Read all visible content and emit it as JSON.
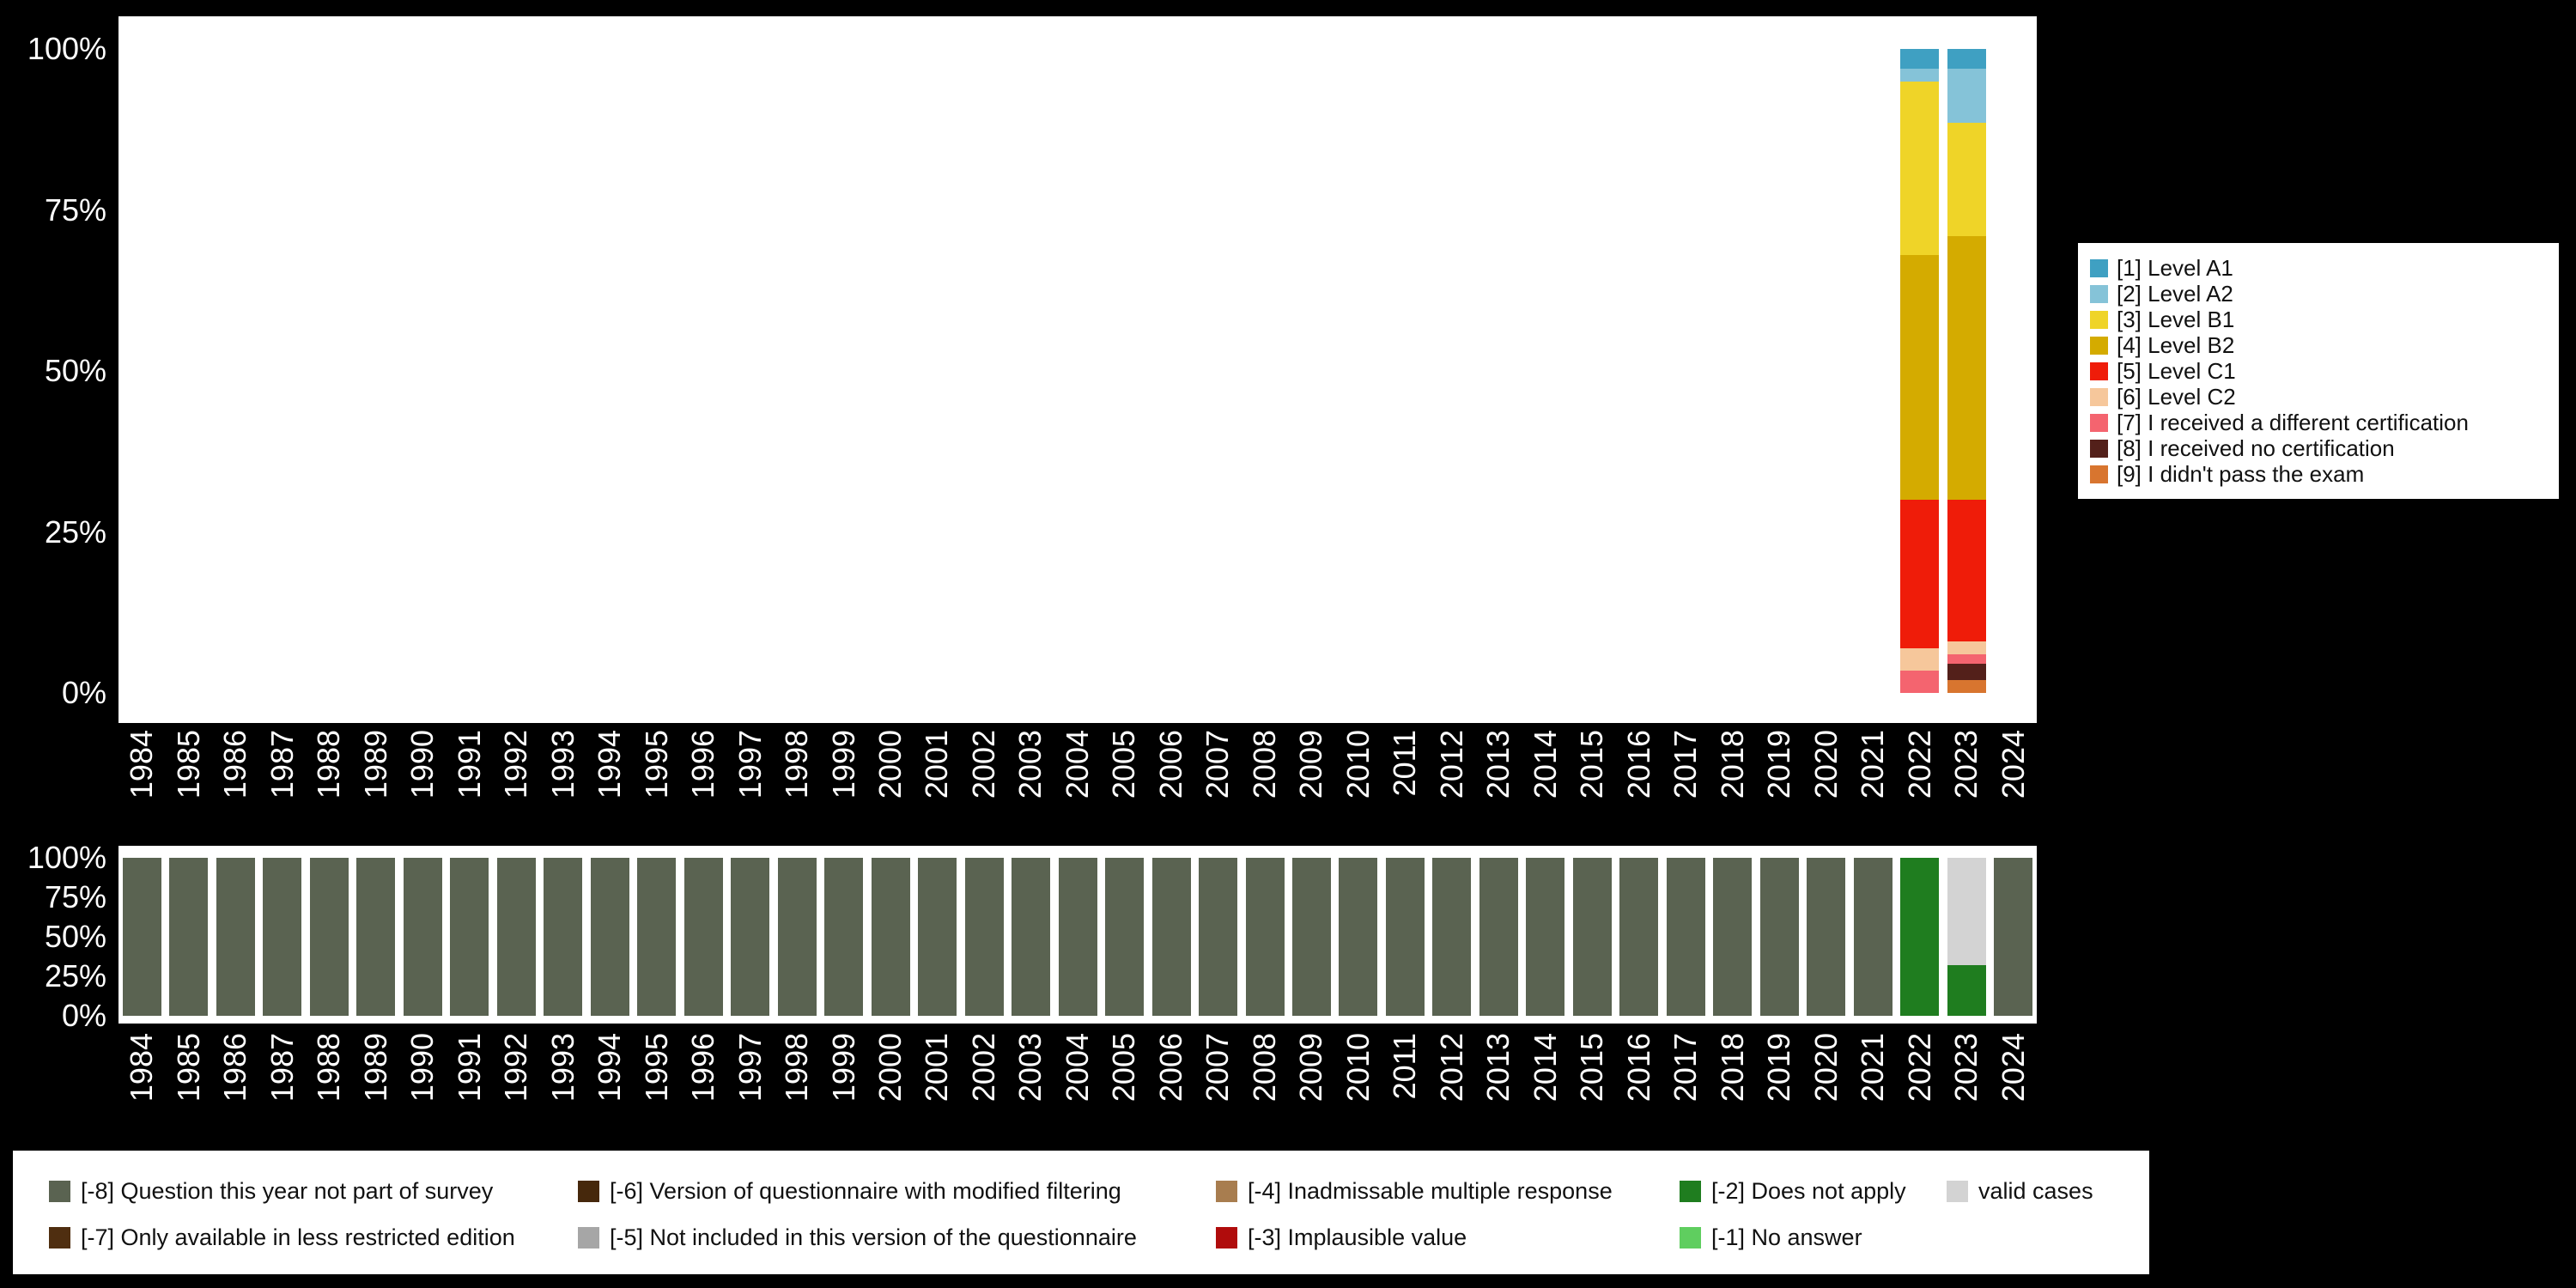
{
  "canvas": {
    "background": "#000000",
    "plot_background": "#ffffff",
    "axis_text_color": "#ffffff",
    "legend_background": "#ffffff",
    "legend_text_color": "#111111"
  },
  "chart_data": [
    {
      "name": "answer-distribution-by-year",
      "type": "bar",
      "stacked": true,
      "stack_from": "top",
      "grid": false,
      "legend_position": "right",
      "ylim": [
        0,
        100
      ],
      "y_ticks": [
        "100%",
        "75%",
        "50%",
        "25%",
        "0%"
      ],
      "categories": [
        "1984",
        "1985",
        "1986",
        "1987",
        "1988",
        "1989",
        "1990",
        "1991",
        "1992",
        "1993",
        "1994",
        "1995",
        "1996",
        "1997",
        "1998",
        "1999",
        "2000",
        "2001",
        "2002",
        "2003",
        "2004",
        "2005",
        "2006",
        "2007",
        "2008",
        "2009",
        "2010",
        "2011",
        "2012",
        "2013",
        "2014",
        "2015",
        "2016",
        "2017",
        "2018",
        "2019",
        "2020",
        "2021",
        "2022",
        "2023",
        "2024"
      ],
      "series": [
        {
          "label": "[1] Level A1",
          "color": "#3FA0C2",
          "values": {
            "2022": 3,
            "2023": 3
          }
        },
        {
          "label": "[2] Level A2",
          "color": "#85C3D8",
          "values": {
            "2022": 2,
            "2023": 8.5
          }
        },
        {
          "label": "[3] Level B1",
          "color": "#EFD428",
          "values": {
            "2022": 27,
            "2023": 17.5
          }
        },
        {
          "label": "[4] Level B2",
          "color": "#D4AB00",
          "values": {
            "2022": 38,
            "2023": 41
          }
        },
        {
          "label": "[5] Level C1",
          "color": "#EF1C09",
          "values": {
            "2022": 23,
            "2023": 22
          }
        },
        {
          "label": "[6] Level C2",
          "color": "#F6C79B",
          "values": {
            "2022": 3.5,
            "2023": 2
          }
        },
        {
          "label": "[7] I received a different certification",
          "color": "#F4646F",
          "values": {
            "2022": 3.5,
            "2023": 1.5
          }
        },
        {
          "label": "[8] I received no certification",
          "color": "#53201A",
          "values": {
            "2023": 2.5
          }
        },
        {
          "label": "[9] I didn't pass the exam",
          "color": "#D8752F",
          "values": {
            "2023": 2
          }
        }
      ]
    },
    {
      "name": "missing-values-by-year",
      "type": "bar",
      "stacked": true,
      "stack_from": "bottom",
      "grid": false,
      "legend_position": "bottom",
      "ylim": [
        0,
        100
      ],
      "y_ticks": [
        "100%",
        "75%",
        "50%",
        "25%",
        "0%"
      ],
      "categories": [
        "1984",
        "1985",
        "1986",
        "1987",
        "1988",
        "1989",
        "1990",
        "1991",
        "1992",
        "1993",
        "1994",
        "1995",
        "1996",
        "1997",
        "1998",
        "1999",
        "2000",
        "2001",
        "2002",
        "2003",
        "2004",
        "2005",
        "2006",
        "2007",
        "2008",
        "2009",
        "2010",
        "2011",
        "2012",
        "2013",
        "2014",
        "2015",
        "2016",
        "2017",
        "2018",
        "2019",
        "2020",
        "2021",
        "2022",
        "2023",
        "2024"
      ],
      "series": [
        {
          "label": "[-8] Question this year not part of survey",
          "color": "#5A6351",
          "values": {
            "1984": 100,
            "1985": 100,
            "1986": 100,
            "1987": 100,
            "1988": 100,
            "1989": 100,
            "1990": 100,
            "1991": 100,
            "1992": 100,
            "1993": 100,
            "1994": 100,
            "1995": 100,
            "1996": 100,
            "1997": 100,
            "1998": 100,
            "1999": 100,
            "2000": 100,
            "2001": 100,
            "2002": 100,
            "2003": 100,
            "2004": 100,
            "2005": 100,
            "2006": 100,
            "2007": 100,
            "2008": 100,
            "2009": 100,
            "2010": 100,
            "2011": 100,
            "2012": 100,
            "2013": 100,
            "2014": 100,
            "2015": 100,
            "2016": 100,
            "2017": 100,
            "2018": 100,
            "2019": 100,
            "2020": 100,
            "2021": 100,
            "2024": 100
          }
        },
        {
          "label": "[-7] Only available in less restricted edition",
          "color": "#4F2E10",
          "values": {}
        },
        {
          "label": "[-6] Version of questionnaire with modified filtering",
          "color": "#46280C",
          "values": {}
        },
        {
          "label": "[-5] Not included in this version of the questionnaire",
          "color": "#A6A6A6",
          "values": {}
        },
        {
          "label": "[-4] Inadmissable multiple response",
          "color": "#A87D4F",
          "values": {}
        },
        {
          "label": "[-3] Implausible value",
          "color": "#B00C0C",
          "values": {}
        },
        {
          "label": "[-2] Does not apply",
          "color": "#1F7D1F",
          "values": {
            "2022": 100,
            "2023": 32
          }
        },
        {
          "label": "[-1] No answer",
          "color": "#5FCE5F",
          "values": {}
        },
        {
          "label": "valid cases",
          "color": "#D3D3D3",
          "values": {
            "2023": 68
          }
        }
      ]
    }
  ]
}
